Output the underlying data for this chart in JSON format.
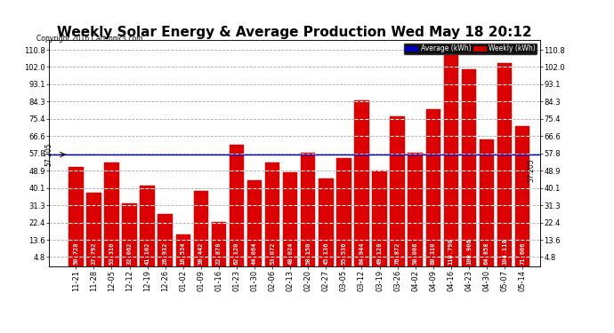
{
  "title": "Weekly Solar Energy & Average Production Wed May 18 20:12",
  "copyright": "Copyright 2016 Cartronics.com",
  "categories": [
    "11-21",
    "11-28",
    "12-05",
    "12-12",
    "12-19",
    "12-26",
    "01-02",
    "01-09",
    "01-16",
    "01-23",
    "01-30",
    "02-06",
    "02-13",
    "02-20",
    "02-27",
    "03-05",
    "03-12",
    "03-19",
    "03-26",
    "04-02",
    "04-09",
    "04-16",
    "04-23",
    "04-30",
    "05-07",
    "05-14"
  ],
  "values": [
    50.728,
    37.792,
    53.31,
    32.062,
    41.102,
    26.932,
    16.534,
    38.442,
    22.878,
    62.12,
    44.064,
    53.072,
    48.024,
    58.15,
    45.136,
    55.536,
    84.944,
    49.128,
    76.872,
    58.008,
    80.31,
    110.79,
    100.906,
    64.858,
    104.118,
    71.606
  ],
  "average": 57.205,
  "bar_color": "#dd0000",
  "avg_line_color": "#0000cc",
  "background_color": "#ffffff",
  "plot_bg_color": "#ffffff",
  "grid_color": "#aaaaaa",
  "ylim_max": 115.8,
  "yticks": [
    4.8,
    13.6,
    22.4,
    31.3,
    40.1,
    48.9,
    57.8,
    66.6,
    75.4,
    84.3,
    93.1,
    102.0,
    110.8
  ],
  "avg_label": "Average (kWh)",
  "weekly_label": "Weekly (kWh)",
  "avg_label_bg": "#0000bb",
  "weekly_label_bg": "#cc0000",
  "title_fontsize": 11,
  "tick_fontsize": 6,
  "value_fontsize": 5.0,
  "avg_value_label": "57.205",
  "right_avg_label": "57.205"
}
